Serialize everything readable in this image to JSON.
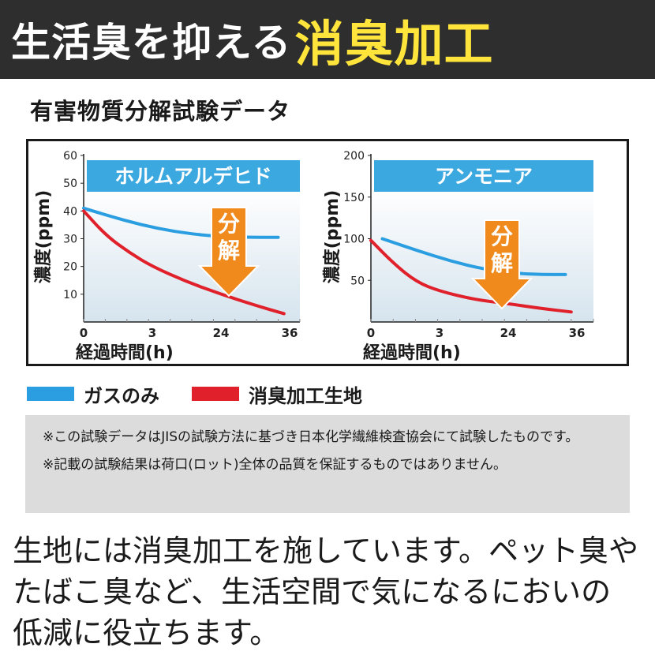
{
  "banner": {
    "title_part1": "生活臭を抑える",
    "title_part2": "消臭加工"
  },
  "section_title": "有害物質分解試験データ",
  "colors": {
    "banner_bg": "#2e2e2e",
    "highlight_yellow": "#ffe53b",
    "gas_only": "#2a9ee0",
    "fabric": "#e0202a",
    "arrow": "#f08a1c",
    "chart_header": "#3ba8e0",
    "chart_bg_top": "#ffffff",
    "chart_bg_bottom": "#dde8f0"
  },
  "chart_data": [
    {
      "type": "line",
      "title": "ホルムアルデヒド",
      "ylabel": "濃度(ppm)",
      "xlabel": "経過時間(h)",
      "ylim": [
        0,
        60
      ],
      "yticks": [
        10,
        20,
        30,
        40,
        50,
        60
      ],
      "xticks": [
        "0",
        "3",
        "24",
        "36"
      ],
      "xlim": [
        0,
        36
      ],
      "arrow_label": "分解",
      "series": [
        {
          "name": "ガスのみ",
          "color": "#2a9ee0",
          "x": [
            0,
            4,
            10,
            16,
            22,
            28,
            34
          ],
          "y": [
            41,
            38.5,
            35,
            32.5,
            31,
            30.5,
            30.5
          ]
        },
        {
          "name": "消臭加工生地",
          "color": "#e0202a",
          "x": [
            0,
            4,
            8,
            12,
            18,
            24,
            30,
            35
          ],
          "y": [
            40,
            31,
            25,
            20,
            14.5,
            10,
            6,
            3
          ]
        }
      ]
    },
    {
      "type": "line",
      "title": "アンモニア",
      "ylabel": "濃度(ppm)",
      "xlabel": "経過時間(h)",
      "ylim": [
        0,
        200
      ],
      "yticks": [
        50,
        100,
        150,
        200
      ],
      "xticks": [
        "0",
        "3",
        "24",
        "36"
      ],
      "xlim": [
        0,
        36
      ],
      "arrow_label": "分解",
      "series": [
        {
          "name": "ガスのみ",
          "color": "#2a9ee0",
          "x": [
            2,
            8,
            14,
            20,
            26,
            30,
            34
          ],
          "y": [
            100,
            86,
            73,
            63,
            58,
            57,
            57
          ]
        },
        {
          "name": "消臭加工生地",
          "color": "#e0202a",
          "x": [
            0,
            4,
            8,
            12,
            18,
            24,
            30,
            35
          ],
          "y": [
            98,
            70,
            48,
            37,
            27,
            22,
            16,
            12
          ]
        }
      ]
    }
  ],
  "legend": {
    "gas_only": "ガスのみ",
    "fabric": "消臭加工生地"
  },
  "notes": [
    "※この試験データはJISの試験方法に基づき日本化学繊維検査協会にて試験したものです。",
    "※記載の試験結果は荷口(ロット)全体の品質を保証するものではありません。"
  ],
  "body_lines": [
    "生地には消臭加工を施しています。ペット臭や",
    "たばこ臭など、生活空間で気になるにおいの",
    "低減に役立ちます。"
  ]
}
